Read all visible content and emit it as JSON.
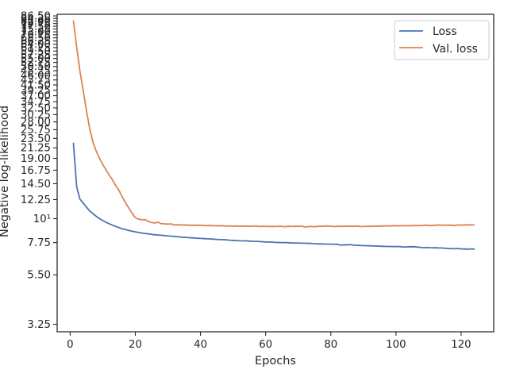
{
  "chart_data": {
    "type": "line",
    "title": "",
    "xlabel": "Epochs",
    "ylabel": "Negative log-likelihood",
    "xlim": [
      -4,
      130
    ],
    "ylim": [
      3.0,
      88.0
    ],
    "yscale": "log",
    "grid": false,
    "legend_position": "top-right",
    "x_ticks": [
      0,
      20,
      40,
      60,
      80,
      100,
      120
    ],
    "x_tick_labels": [
      "0",
      "20",
      "40",
      "60",
      "80",
      "100",
      "120"
    ],
    "y_ticks": [
      3.25,
      5.5,
      7.75,
      10,
      12.25,
      14.5,
      16.75,
      19.0,
      21.25,
      23.5,
      25.75,
      28.0,
      30.25,
      32.5,
      34.75,
      37.0,
      39.25,
      41.5,
      43.75,
      46.0,
      48.25,
      50.5,
      52.75,
      55.0,
      57.25,
      59.5,
      61.75,
      64.0,
      66.25,
      68.5,
      70.75,
      73.0,
      75.25,
      77.5,
      79.75,
      82.0,
      84.25,
      86.5
    ],
    "y_tick_labels": [
      "3.25",
      "5.50",
      "7.75",
      "10¹",
      "12.25",
      "14.50",
      "16.75",
      "19.00",
      "21.25",
      "23.50",
      "25.75",
      "28.00",
      "30.25",
      "32.50",
      "34.75",
      "37.00",
      "39.25",
      "41.50",
      "43.75",
      "46.00",
      "48.25",
      "50.50",
      "52.75",
      "55.00",
      "57.25",
      "59.50",
      "61.75",
      "64.00",
      "66.25",
      "68.50",
      "70.75",
      "73.00",
      "75.25",
      "77.50",
      "79.75",
      "82.00",
      "84.25",
      "86.50"
    ],
    "series": [
      {
        "name": "Loss",
        "color": "#4c72b0",
        "x": [
          1,
          2,
          3,
          4,
          5,
          6,
          7,
          8,
          9,
          10,
          11,
          12,
          13,
          14,
          15,
          16,
          17,
          18,
          19,
          20,
          21,
          22,
          23,
          24,
          25,
          26,
          27,
          28,
          29,
          30,
          31,
          32,
          33,
          34,
          35,
          36,
          37,
          38,
          39,
          40,
          41,
          42,
          43,
          44,
          45,
          46,
          47,
          48,
          49,
          50,
          51,
          52,
          53,
          54,
          55,
          56,
          57,
          58,
          59,
          60,
          61,
          62,
          63,
          64,
          65,
          66,
          67,
          68,
          69,
          70,
          71,
          72,
          73,
          74,
          75,
          76,
          77,
          78,
          79,
          80,
          81,
          82,
          83,
          84,
          85,
          86,
          87,
          88,
          89,
          90,
          91,
          92,
          93,
          94,
          95,
          96,
          97,
          98,
          99,
          100,
          101,
          102,
          103,
          104,
          105,
          106,
          107,
          108,
          109,
          110,
          111,
          112,
          113,
          114,
          115,
          116,
          117,
          118,
          119,
          120,
          121,
          122,
          123,
          124
        ],
        "y": [
          22.3,
          14.0,
          12.3,
          11.8,
          11.3,
          10.85,
          10.55,
          10.25,
          10.0,
          9.8,
          9.62,
          9.47,
          9.33,
          9.2,
          9.08,
          8.98,
          8.9,
          8.82,
          8.75,
          8.69,
          8.63,
          8.58,
          8.54,
          8.5,
          8.46,
          8.42,
          8.4,
          8.38,
          8.35,
          8.32,
          8.3,
          8.28,
          8.25,
          8.22,
          8.2,
          8.18,
          8.16,
          8.14,
          8.12,
          8.1,
          8.09,
          8.07,
          8.06,
          8.04,
          8.02,
          8.0,
          8.0,
          7.98,
          7.95,
          7.93,
          7.92,
          7.9,
          7.89,
          7.9,
          7.88,
          7.86,
          7.85,
          7.84,
          7.82,
          7.8,
          7.8,
          7.79,
          7.77,
          7.76,
          7.75,
          7.75,
          7.74,
          7.72,
          7.72,
          7.71,
          7.7,
          7.7,
          7.69,
          7.68,
          7.66,
          7.65,
          7.64,
          7.63,
          7.63,
          7.62,
          7.62,
          7.61,
          7.55,
          7.56,
          7.57,
          7.58,
          7.55,
          7.53,
          7.52,
          7.5,
          7.5,
          7.49,
          7.48,
          7.47,
          7.46,
          7.45,
          7.44,
          7.44,
          7.43,
          7.44,
          7.43,
          7.4,
          7.4,
          7.41,
          7.42,
          7.41,
          7.38,
          7.35,
          7.34,
          7.35,
          7.33,
          7.34,
          7.32,
          7.32,
          7.3,
          7.28,
          7.27,
          7.26,
          7.28,
          7.25,
          7.24,
          7.22,
          7.25,
          7.23
        ]
      },
      {
        "name": "Val. loss",
        "color": "#dd8452",
        "x": [
          1,
          2,
          3,
          4,
          5,
          6,
          7,
          8,
          9,
          10,
          11,
          12,
          13,
          14,
          15,
          16,
          17,
          18,
          19,
          20,
          21,
          22,
          23,
          24,
          25,
          26,
          27,
          28,
          29,
          30,
          31,
          32,
          33,
          34,
          35,
          36,
          37,
          38,
          39,
          40,
          41,
          42,
          43,
          44,
          45,
          46,
          47,
          48,
          49,
          50,
          51,
          52,
          53,
          54,
          55,
          56,
          57,
          58,
          59,
          60,
          61,
          62,
          63,
          64,
          65,
          66,
          67,
          68,
          69,
          70,
          71,
          72,
          73,
          74,
          75,
          76,
          77,
          78,
          79,
          80,
          81,
          82,
          83,
          84,
          85,
          86,
          87,
          88,
          89,
          90,
          91,
          92,
          93,
          94,
          95,
          96,
          97,
          98,
          99,
          100,
          101,
          102,
          103,
          104,
          105,
          106,
          107,
          108,
          109,
          110,
          111,
          112,
          113,
          114,
          115,
          116,
          117,
          118,
          119,
          120,
          121,
          122,
          123,
          124
        ],
        "y": [
          82.0,
          62.0,
          48.0,
          39.0,
          31.5,
          26.0,
          22.5,
          20.5,
          19.0,
          17.8,
          16.8,
          15.9,
          15.1,
          14.2,
          13.5,
          12.6,
          11.8,
          11.2,
          10.6,
          10.1,
          9.95,
          9.88,
          9.9,
          9.7,
          9.6,
          9.55,
          9.62,
          9.48,
          9.46,
          9.44,
          9.45,
          9.35,
          9.37,
          9.36,
          9.34,
          9.35,
          9.32,
          9.33,
          9.31,
          9.33,
          9.3,
          9.29,
          9.3,
          9.28,
          9.27,
          9.28,
          9.26,
          9.24,
          9.25,
          9.23,
          9.25,
          9.22,
          9.23,
          9.24,
          9.22,
          9.23,
          9.25,
          9.2,
          9.22,
          9.21,
          9.2,
          9.21,
          9.2,
          9.22,
          9.21,
          9.18,
          9.22,
          9.2,
          9.22,
          9.21,
          9.24,
          9.15,
          9.18,
          9.21,
          9.17,
          9.22,
          9.21,
          9.23,
          9.25,
          9.22,
          9.2,
          9.21,
          9.22,
          9.21,
          9.22,
          9.23,
          9.22,
          9.24,
          9.2,
          9.2,
          9.21,
          9.21,
          9.22,
          9.24,
          9.23,
          9.25,
          9.26,
          9.25,
          9.28,
          9.27,
          9.26,
          9.28,
          9.27,
          9.28,
          9.29,
          9.3,
          9.29,
          9.3,
          9.33,
          9.3,
          9.3,
          9.32,
          9.35,
          9.33,
          9.32,
          9.34,
          9.33,
          9.3,
          9.35,
          9.34,
          9.35,
          9.37,
          9.36,
          9.35
        ]
      }
    ]
  }
}
